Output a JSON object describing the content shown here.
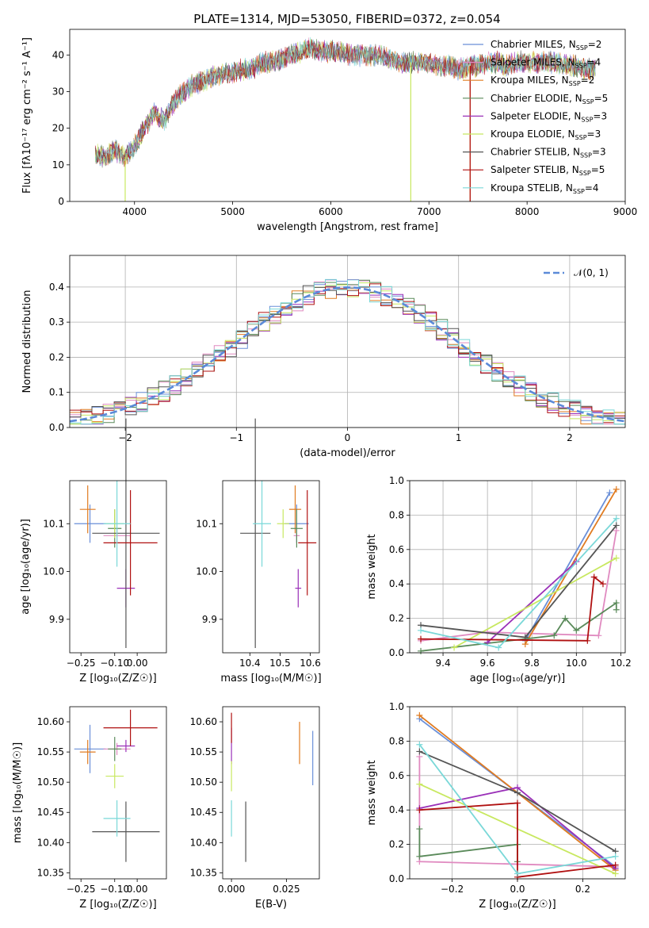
{
  "figure_title": "PLATE=1314, MJD=53050, FIBERID=0372, z=0.054",
  "series_colors": [
    "#6a8fd8",
    "#e08ac0",
    "#e07b20",
    "#5a8a5a",
    "#9a30b8",
    "#c8e860",
    "#555555",
    "#b01010",
    "#7ad8d8"
  ],
  "chart_data": [
    {
      "type": "line",
      "title": "PLATE=1314, MJD=53050, FIBERID=0372, z=0.054",
      "xlabel": "wavelength [Angstrom, rest frame]",
      "ylabel": "Flux [fλ10⁻¹⁷ erg cm⁻² s⁻¹ A⁻¹]",
      "xlim": [
        3340,
        9000
      ],
      "ylim": [
        0,
        47
      ],
      "xticks": [
        4000,
        5000,
        6000,
        7000,
        8000,
        9000
      ],
      "yticks": [
        0,
        10,
        20,
        30,
        40
      ],
      "grid": false,
      "legend_position": "upper-right",
      "legend": [
        "Chabrier MILES, N_SSP=2",
        "Salpeter MILES, N_SSP=4",
        "Kroupa MILES, N_SSP=2",
        "Chabrier ELODIE, N_SSP=5",
        "Salpeter ELODIE, N_SSP=3",
        "Kroupa ELODIE, N_SSP=3",
        "Chabrier STELIB, N_SSP=3",
        "Salpeter STELIB, N_SSP=5",
        "Kroupa STELIB, N_SSP=4"
      ],
      "continuum": {
        "x": [
          3600,
          3700,
          3800,
          3900,
          4000,
          4100,
          4200,
          4300,
          4400,
          4500,
          4600,
          4700,
          4800,
          4900,
          5000,
          5100,
          5200,
          5300,
          5400,
          5500,
          5600,
          5700,
          5800,
          5900,
          6000,
          6100,
          6200,
          6300,
          6400,
          6500,
          6600,
          6700,
          6800,
          6900,
          7000,
          7100,
          7200,
          7300,
          7400,
          7500,
          7600,
          7700,
          7800,
          7900,
          8000,
          8100,
          8200,
          8300,
          8400,
          8500,
          8600,
          8700
        ],
        "y": [
          13,
          12,
          14,
          12,
          15,
          20,
          24,
          22,
          27,
          30,
          32,
          33,
          34,
          35,
          35,
          36,
          36,
          38,
          38,
          39,
          40,
          41,
          42,
          41,
          41,
          41,
          40,
          40,
          40,
          40,
          39,
          38,
          38,
          38,
          38,
          37,
          37,
          36,
          37,
          37,
          38,
          38,
          37,
          38,
          38,
          38,
          38,
          38,
          37,
          37,
          36,
          36
        ]
      },
      "drop_outs": [
        {
          "series": "Kroupa ELODIE",
          "x": 3905
        },
        {
          "series": "Kroupa ELODIE",
          "x": 6815
        },
        {
          "series": "Kroupa MILES",
          "x": 7420
        },
        {
          "series": "Salpeter STELIB",
          "x": 7420
        }
      ]
    },
    {
      "type": "step",
      "xlabel": "(data-model)/error",
      "ylabel": "Normed distribution",
      "xlim": [
        -2.5,
        2.5
      ],
      "ylim": [
        0,
        0.49
      ],
      "xticks": [
        -2,
        -1,
        0,
        1,
        2
      ],
      "xtick_labels": [
        "−2",
        "−1",
        "0",
        "1",
        "2"
      ],
      "yticks": [
        0.0,
        0.1,
        0.2,
        0.3,
        0.4
      ],
      "grid": true,
      "legend_position": "upper-right",
      "legend": [
        "𝒩(0, 1)"
      ],
      "bin_width": 0.1
    },
    {
      "type": "errorbar",
      "xlabel": "Z [log₁₀(Z/Z☉)]",
      "ylabel": "age  [log₁₀(age/yr)]",
      "xlim": [
        -0.3,
        0.13
      ],
      "ylim": [
        9.83,
        10.19
      ],
      "xticks": [
        -0.25,
        -0.1,
        0.0
      ],
      "xtick_labels": [
        "−0.25",
        "−0.10",
        "0.00"
      ],
      "yticks": [
        9.9,
        10.0,
        10.1
      ],
      "yticks_labels": [
        "9.9",
        "10.0",
        "10.1"
      ],
      "grid": false,
      "points": [
        {
          "x": -0.21,
          "xerr": 0.07,
          "y": 10.1,
          "yerr": 0.04,
          "c": 0
        },
        {
          "x": -0.09,
          "xerr": 0.06,
          "y": 10.075,
          "yerr": 0.015,
          "c": 1
        },
        {
          "x": -0.22,
          "xerr": 0.035,
          "y": 10.13,
          "yerr": 0.05,
          "c": 2
        },
        {
          "x": -0.1,
          "xerr": 0.03,
          "y": 10.09,
          "yerr": 0.04,
          "c": 3
        },
        {
          "x": -0.05,
          "xerr": 0.04,
          "y": 9.965,
          "yerr": 0.04,
          "c": 4
        },
        {
          "x": -0.1,
          "xerr": 0.04,
          "y": 10.1,
          "yerr": 0.03,
          "c": 5
        },
        {
          "x": -0.05,
          "xerr": 0.15,
          "y": 10.08,
          "yerr": 0.24,
          "c": 6
        },
        {
          "x": -0.03,
          "xerr": 0.12,
          "y": 10.06,
          "yerr": 0.11,
          "c": 7
        },
        {
          "x": -0.09,
          "xerr": 0.06,
          "y": 10.1,
          "yerr": 0.09,
          "c": 8
        }
      ]
    },
    {
      "type": "errorbar",
      "xlabel": "mass [log₁₀(M/M☉)]",
      "ylabel": "",
      "xlim": [
        10.31,
        10.63
      ],
      "ylim": [
        9.83,
        10.19
      ],
      "xticks": [
        10.4,
        10.5,
        10.6
      ],
      "xtick_labels": [
        "10.4",
        "10.5",
        "10.6"
      ],
      "yticks": [
        9.9,
        10.0,
        10.1
      ],
      "yticks_labels": [
        "9.9",
        "10.0",
        "10.1"
      ],
      "grid": false,
      "points": [
        {
          "x": 10.555,
          "xerr": 0.04,
          "y": 10.1,
          "yerr": 0.04,
          "c": 0
        },
        {
          "x": 10.555,
          "xerr": 0.01,
          "y": 10.075,
          "yerr": 0.015,
          "c": 1
        },
        {
          "x": 10.55,
          "xerr": 0.02,
          "y": 10.13,
          "yerr": 0.05,
          "c": 2
        },
        {
          "x": 10.555,
          "xerr": 0.02,
          "y": 10.09,
          "yerr": 0.04,
          "c": 3
        },
        {
          "x": 10.56,
          "xerr": 0.01,
          "y": 9.965,
          "yerr": 0.04,
          "c": 4
        },
        {
          "x": 10.51,
          "xerr": 0.02,
          "y": 10.1,
          "yerr": 0.03,
          "c": 5
        },
        {
          "x": 10.418,
          "xerr": 0.05,
          "y": 10.08,
          "yerr": 0.24,
          "c": 6
        },
        {
          "x": 10.59,
          "xerr": 0.03,
          "y": 10.06,
          "yerr": 0.11,
          "c": 7
        },
        {
          "x": 10.44,
          "xerr": 0.03,
          "y": 10.1,
          "yerr": 0.09,
          "c": 8
        }
      ]
    },
    {
      "type": "line",
      "xlabel": "age  [log₁₀(age/yr)]",
      "ylabel": "mass weight",
      "xlim": [
        9.25,
        10.22
      ],
      "ylim": [
        0,
        1.0
      ],
      "xticks": [
        9.4,
        9.6,
        9.8,
        10.0,
        10.2
      ],
      "xtick_labels": [
        "9.4",
        "9.6",
        "9.8",
        "10.0",
        "10.2"
      ],
      "yticks": [
        0.0,
        0.2,
        0.4,
        0.6,
        0.8,
        1.0
      ],
      "grid": true,
      "series": [
        {
          "c": 0,
          "x": [
            9.77,
            10.15
          ],
          "y": [
            0.07,
            0.93
          ]
        },
        {
          "c": 1,
          "x": [
            9.3,
            9.6,
            10.1,
            10.18
          ],
          "y": [
            0.07,
            0.12,
            0.1,
            0.71
          ]
        },
        {
          "c": 2,
          "x": [
            9.77,
            10.18
          ],
          "y": [
            0.05,
            0.95
          ]
        },
        {
          "c": 3,
          "x": [
            9.3,
            9.9,
            9.95,
            10.0,
            10.18,
            10.18
          ],
          "y": [
            0.01,
            0.1,
            0.2,
            0.13,
            0.29,
            0.25
          ]
        },
        {
          "c": 4,
          "x": [
            9.6,
            10.0
          ],
          "y": [
            0.06,
            0.53
          ]
        },
        {
          "c": 5,
          "x": [
            9.45,
            10.18
          ],
          "y": [
            0.03,
            0.55
          ]
        },
        {
          "c": 6,
          "x": [
            9.3,
            9.77,
            10.18
          ],
          "y": [
            0.16,
            0.09,
            0.74
          ]
        },
        {
          "c": 7,
          "x": [
            9.3,
            10.05,
            10.08,
            10.12
          ],
          "y": [
            0.08,
            0.07,
            0.44,
            0.4
          ]
        },
        {
          "c": 8,
          "x": [
            9.3,
            9.65,
            10.18
          ],
          "y": [
            0.13,
            0.03,
            0.78
          ]
        }
      ]
    },
    {
      "type": "errorbar",
      "xlabel": "Z [log₁₀(Z/Z☉)]",
      "ylabel": "mass [log₁₀(M/M☉)]",
      "xlim": [
        -0.3,
        0.13
      ],
      "ylim": [
        10.34,
        10.625
      ],
      "xticks": [
        -0.25,
        -0.1,
        0.0
      ],
      "xtick_labels": [
        "−0.25",
        "−0.10",
        "0.00"
      ],
      "yticks": [
        10.35,
        10.4,
        10.45,
        10.5,
        10.55,
        10.6
      ],
      "yticks_labels": [
        "10.35",
        "10.40",
        "10.45",
        "10.50",
        "10.55",
        "10.60"
      ],
      "grid": false,
      "points": [
        {
          "x": -0.21,
          "xerr": 0.07,
          "y": 10.555,
          "yerr": 0.04,
          "c": 0
        },
        {
          "x": -0.09,
          "xerr": 0.06,
          "y": 10.555,
          "yerr": 0.01,
          "c": 1
        },
        {
          "x": -0.22,
          "xerr": 0.035,
          "y": 10.55,
          "yerr": 0.02,
          "c": 2
        },
        {
          "x": -0.1,
          "xerr": 0.03,
          "y": 10.555,
          "yerr": 0.02,
          "c": 3
        },
        {
          "x": -0.05,
          "xerr": 0.04,
          "y": 10.56,
          "yerr": 0.01,
          "c": 4
        },
        {
          "x": -0.1,
          "xerr": 0.04,
          "y": 10.51,
          "yerr": 0.02,
          "c": 5
        },
        {
          "x": -0.05,
          "xerr": 0.15,
          "y": 10.418,
          "yerr": 0.05,
          "c": 6
        },
        {
          "x": -0.03,
          "xerr": 0.12,
          "y": 10.59,
          "yerr": 0.03,
          "c": 7
        },
        {
          "x": -0.09,
          "xerr": 0.06,
          "y": 10.44,
          "yerr": 0.03,
          "c": 8
        }
      ]
    },
    {
      "type": "errorbar",
      "xlabel": "E(B-V)",
      "ylabel": "",
      "xlim": [
        -0.004,
        0.04
      ],
      "ylim": [
        10.34,
        10.625
      ],
      "xticks": [
        0.0,
        0.025
      ],
      "xtick_labels": [
        "0.000",
        "0.025"
      ],
      "yticks": [
        10.35,
        10.4,
        10.45,
        10.5,
        10.55,
        10.6
      ],
      "yticks_labels": [
        "10.35",
        "10.40",
        "10.45",
        "10.50",
        "10.55",
        "10.60"
      ],
      "grid": false,
      "points": [
        {
          "x": 0.037,
          "xerr": 0,
          "y": 10.54,
          "yerr": 0.045,
          "c": 0
        },
        {
          "x": 0.031,
          "xerr": 0,
          "y": 10.565,
          "yerr": 0.035,
          "c": 2
        },
        {
          "x": 0.0,
          "xerr": 0,
          "y": 10.56,
          "yerr": 0.03,
          "c": 4
        },
        {
          "x": 0.0,
          "xerr": 0,
          "y": 10.51,
          "yerr": 0.025,
          "c": 5
        },
        {
          "x": 0.0065,
          "xerr": 0,
          "y": 10.418,
          "yerr": 0.05,
          "c": 6
        },
        {
          "x": 0.0,
          "xerr": 0,
          "y": 10.59,
          "yerr": 0.025,
          "c": 7
        },
        {
          "x": 0.0,
          "xerr": 0,
          "y": 10.44,
          "yerr": 0.03,
          "c": 8
        }
      ]
    },
    {
      "type": "line",
      "xlabel": "Z [log₁₀(Z/Z☉)]",
      "ylabel": "mass weight",
      "xlim": [
        -0.33,
        0.33
      ],
      "ylim": [
        0,
        1.0
      ],
      "xticks": [
        -0.2,
        0.0,
        0.2
      ],
      "xtick_labels": [
        "−0.2",
        "0.0",
        "0.2"
      ],
      "yticks": [
        0.0,
        0.2,
        0.4,
        0.6,
        0.8,
        1.0
      ],
      "grid": true,
      "series": [
        {
          "c": 0,
          "x": [
            -0.3,
            0.3
          ],
          "y": [
            0.93,
            0.07
          ]
        },
        {
          "c": 1,
          "x": [
            -0.3,
            -0.3,
            0.3
          ],
          "y": [
            0.71,
            0.1,
            0.07
          ]
        },
        {
          "c": 2,
          "x": [
            -0.3,
            0.3
          ],
          "y": [
            0.95,
            0.05
          ]
        },
        {
          "c": 3,
          "x": [
            -0.3,
            -0.3,
            0.0,
            0.0
          ],
          "y": [
            0.29,
            0.13,
            0.2,
            0.1
          ]
        },
        {
          "c": 4,
          "x": [
            -0.3,
            0.0,
            0.3
          ],
          "y": [
            0.41,
            0.53,
            0.06
          ]
        },
        {
          "c": 5,
          "x": [
            -0.3,
            0.3
          ],
          "y": [
            0.55,
            0.03
          ]
        },
        {
          "c": 6,
          "x": [
            -0.3,
            0.0,
            0.3
          ],
          "y": [
            0.74,
            0.5,
            0.16
          ]
        },
        {
          "c": 7,
          "x": [
            -0.3,
            0.0,
            0.0,
            0.3
          ],
          "y": [
            0.4,
            0.44,
            0.01,
            0.08
          ]
        },
        {
          "c": 8,
          "x": [
            -0.3,
            0.0,
            0.3
          ],
          "y": [
            0.78,
            0.03,
            0.13
          ]
        }
      ]
    }
  ]
}
